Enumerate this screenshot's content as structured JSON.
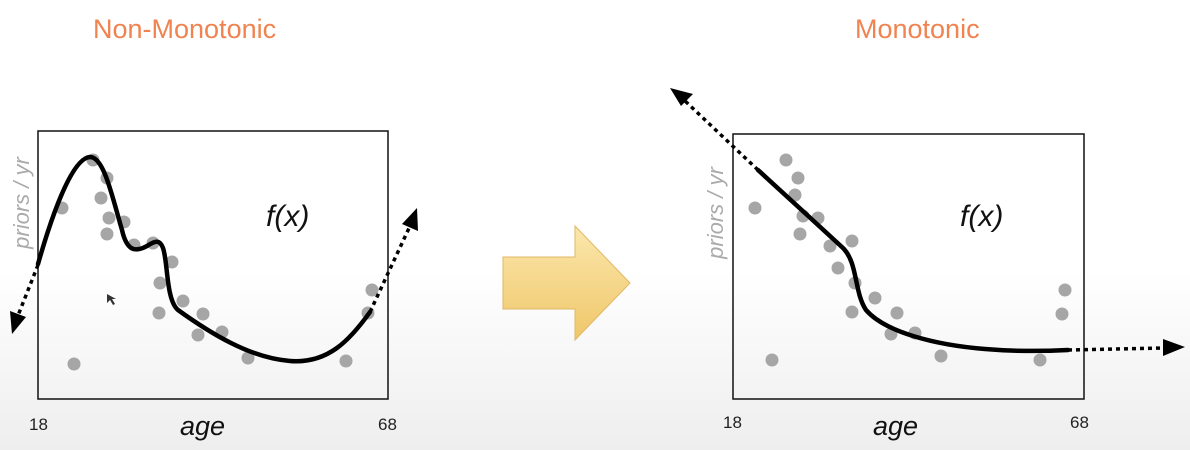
{
  "left_panel": {
    "title": "Non-Monotonic",
    "x_label": "age",
    "y_label": "priors / yr",
    "x_min_label": "18",
    "x_max_label": "68",
    "function_label": "f(x)"
  },
  "right_panel": {
    "title": "Monotonic",
    "x_label": "age",
    "y_label": "priors / yr",
    "x_min_label": "18",
    "x_max_label": "68",
    "function_label": "f(x)"
  },
  "colors": {
    "title": "#f0834f",
    "points": "#a6a6a6",
    "curve": "#000000",
    "arrow_fill": "#f5d787",
    "y_label": "#aaaaaa"
  }
}
